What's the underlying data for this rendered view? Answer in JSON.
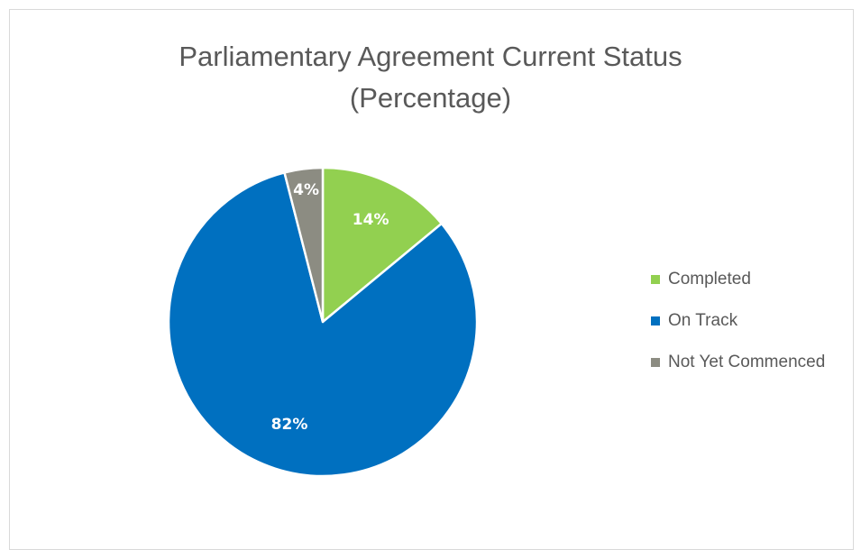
{
  "chart_data": {
    "type": "pie",
    "title_line1": "Parliamentary Agreement Current Status",
    "title_line2": "(Percentage)",
    "legend_position": "right",
    "slices": [
      {
        "name": "Completed",
        "value": 14,
        "label": "14%",
        "color": "#92d050"
      },
      {
        "name": "On Track",
        "value": 82,
        "label": "82%",
        "color": "#0070c0"
      },
      {
        "name": "Not Yet Commenced",
        "value": 4,
        "label": "4%",
        "color": "#8c8c82"
      }
    ]
  }
}
